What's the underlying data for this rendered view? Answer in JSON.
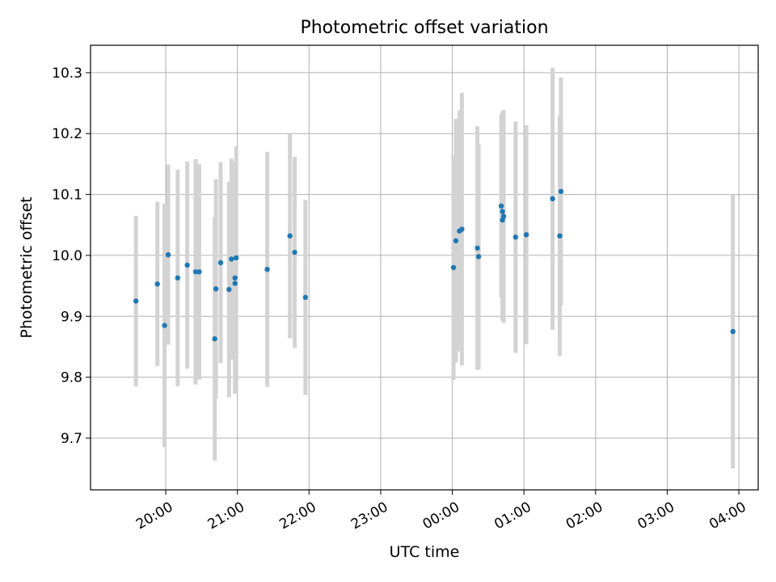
{
  "chart_data": {
    "type": "scatter",
    "title": "Photometric offset variation",
    "xlabel": "UTC time",
    "ylabel": "Photometric offset",
    "x_ticks": [
      "20:00",
      "21:00",
      "22:00",
      "23:00",
      "00:00",
      "01:00",
      "02:00",
      "03:00",
      "04:00"
    ],
    "y_ticks": [
      "9.7",
      "9.8",
      "9.9",
      "10.0",
      "10.1",
      "10.2",
      "10.3"
    ],
    "xlim_hours": [
      18.95,
      28.27
    ],
    "ylim": [
      9.615,
      10.345
    ],
    "grid": true,
    "marker_color": "#1f77b4",
    "errorbar_color": "#d3d3d3",
    "series": [
      {
        "points": [
          {
            "t": "19:35",
            "y": 9.925,
            "err": 0.14
          },
          {
            "t": "19:53",
            "y": 9.953,
            "err": 0.135
          },
          {
            "t": "19:59",
            "y": 9.885,
            "err": 0.2
          },
          {
            "t": "20:02",
            "y": 10.001,
            "err": 0.148
          },
          {
            "t": "20:10",
            "y": 9.963,
            "err": 0.178
          },
          {
            "t": "20:18",
            "y": 9.984,
            "err": 0.17
          },
          {
            "t": "20:25",
            "y": 9.973,
            "err": 0.185
          },
          {
            "t": "20:28",
            "y": 9.973,
            "err": 0.177
          },
          {
            "t": "20:41",
            "y": 9.863,
            "err": 0.2
          },
          {
            "t": "20:42",
            "y": 9.945,
            "err": 0.18
          },
          {
            "t": "20:46",
            "y": 9.988,
            "err": 0.165
          },
          {
            "t": "20:53",
            "y": 9.944,
            "err": 0.177
          },
          {
            "t": "20:55",
            "y": 9.994,
            "err": 0.165
          },
          {
            "t": "20:58",
            "y": 9.954,
            "err": 0.18
          },
          {
            "t": "20:58",
            "y": 9.963,
            "err": 0.19
          },
          {
            "t": "20:59",
            "y": 9.996,
            "err": 0.183
          },
          {
            "t": "21:25",
            "y": 9.977,
            "err": 0.193
          },
          {
            "t": "21:44",
            "y": 10.032,
            "err": 0.168
          },
          {
            "t": "21:48",
            "y": 10.005,
            "err": 0.157
          },
          {
            "t": "21:57",
            "y": 9.931,
            "err": 0.16
          },
          {
            "t": "00:01",
            "y": 9.98,
            "err": 0.185
          },
          {
            "t": "00:03",
            "y": 10.024,
            "err": 0.2
          },
          {
            "t": "00:06",
            "y": 10.04,
            "err": 0.198
          },
          {
            "t": "00:08",
            "y": 10.043,
            "err": 0.224
          },
          {
            "t": "00:21",
            "y": 10.012,
            "err": 0.2
          },
          {
            "t": "00:22",
            "y": 9.998,
            "err": 0.185
          },
          {
            "t": "00:41",
            "y": 10.081,
            "err": 0.15
          },
          {
            "t": "00:42",
            "y": 10.072,
            "err": 0.165
          },
          {
            "t": "00:42",
            "y": 10.058,
            "err": 0.165
          },
          {
            "t": "00:43",
            "y": 10.064,
            "err": 0.175
          },
          {
            "t": "00:53",
            "y": 10.03,
            "err": 0.19
          },
          {
            "t": "01:02",
            "y": 10.034,
            "err": 0.18
          },
          {
            "t": "01:24",
            "y": 10.093,
            "err": 0.215
          },
          {
            "t": "01:30",
            "y": 10.032,
            "err": 0.197
          },
          {
            "t": "01:31",
            "y": 10.105,
            "err": 0.187
          },
          {
            "t": "03:55",
            "y": 9.875,
            "err": 0.225
          }
        ]
      }
    ]
  }
}
